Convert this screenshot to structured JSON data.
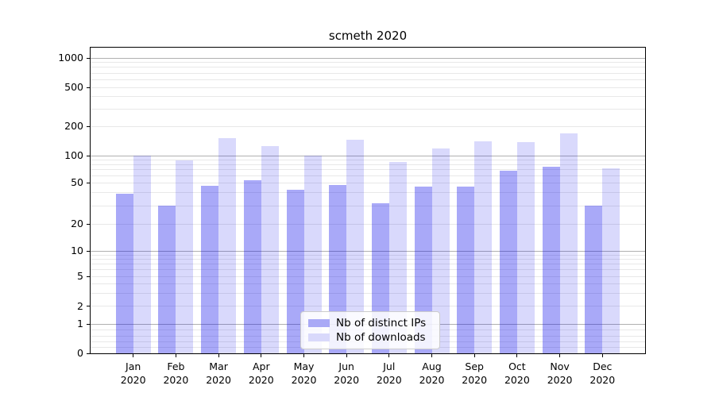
{
  "chart_data": {
    "type": "bar",
    "title": "scmeth 2020",
    "categories": [
      "Jan 2020",
      "Feb 2020",
      "Mar 2020",
      "Apr 2020",
      "May 2020",
      "Jun 2020",
      "Jul 2020",
      "Aug 2020",
      "Sep 2020",
      "Oct 2020",
      "Nov 2020",
      "Dec 2020"
    ],
    "series": [
      {
        "name": "Nb of distinct IPs",
        "color": "#0a0aeb",
        "alpha": 0.35,
        "values": [
          39,
          30,
          47,
          53,
          43,
          48,
          32,
          46,
          46,
          68,
          75,
          30
        ]
      },
      {
        "name": "Nb of downloads",
        "color": "#0a0aeb",
        "alpha": 0.155,
        "values": [
          100,
          88,
          150,
          125,
          100,
          146,
          85,
          118,
          140,
          138,
          168,
          72
        ]
      }
    ],
    "xlabel": "",
    "ylabel": "",
    "yscale": "symlog",
    "ylim": [
      0,
      1300
    ],
    "ytick_labels": [
      "0",
      "1",
      "2",
      "5",
      "10",
      "20",
      "50",
      "100",
      "200",
      "500",
      "1000"
    ],
    "grid": "both",
    "legend_position": "lower center"
  },
  "legend": {
    "items": [
      {
        "label": "Nb of distinct IPs",
        "swatch_color": "#a9a9f6"
      },
      {
        "label": "Nb of downloads",
        "swatch_color": "#d9d9fb"
      }
    ]
  },
  "colors": {
    "bar_ips": "#a9a9f6",
    "bar_downloads": "#d9d9fb",
    "grid_major": "#b0b0b0",
    "grid_minor": "#e8e8e8",
    "axis": "#000000"
  }
}
